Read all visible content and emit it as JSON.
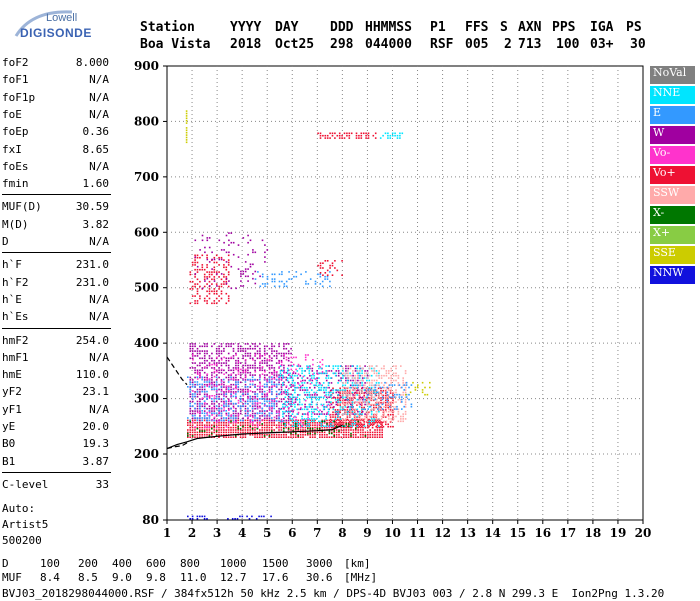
{
  "logo": {
    "brand": "Lowell",
    "name": "DIGISONDE"
  },
  "header": {
    "labels": [
      "Station",
      "YYYY",
      "DAY",
      "DDD",
      "HHMMSS",
      "P1",
      "FFS",
      "S",
      "AXN",
      "PPS",
      "IGA",
      "PS"
    ],
    "values": [
      "Boa Vista",
      "2018",
      "Oct25",
      "298",
      "044000",
      "RSF",
      "005",
      "2",
      "713",
      "100",
      "03+",
      "30"
    ]
  },
  "params": {
    "group1": [
      {
        "name": "foF2",
        "value": "8.000"
      },
      {
        "name": "foF1",
        "value": "N/A"
      },
      {
        "name": "foF1p",
        "value": "N/A"
      },
      {
        "name": "foE",
        "value": "N/A"
      },
      {
        "name": "foEp",
        "value": "0.36"
      },
      {
        "name": "fxI",
        "value": "8.65"
      },
      {
        "name": "foEs",
        "value": "N/A"
      },
      {
        "name": "fmin",
        "value": "1.60"
      }
    ],
    "group2": [
      {
        "name": "MUF(D)",
        "value": "30.59"
      },
      {
        "name": "M(D)",
        "value": "3.82"
      },
      {
        "name": "D",
        "value": "N/A"
      }
    ],
    "group3": [
      {
        "name": "h`F",
        "value": "231.0"
      },
      {
        "name": "h`F2",
        "value": "231.0"
      },
      {
        "name": "h`E",
        "value": "N/A"
      },
      {
        "name": "h`Es",
        "value": "N/A"
      }
    ],
    "group4": [
      {
        "name": "hmF2",
        "value": "254.0"
      },
      {
        "name": "hmF1",
        "value": "N/A"
      },
      {
        "name": "hmE",
        "value": "110.0"
      },
      {
        "name": "yF2",
        "value": "23.1"
      },
      {
        "name": "yF1",
        "value": "N/A"
      },
      {
        "name": "yE",
        "value": "20.0"
      },
      {
        "name": "B0",
        "value": "19.3"
      },
      {
        "name": "B1",
        "value": "3.87"
      }
    ],
    "group5": [
      {
        "name": "C-level",
        "value": "33"
      }
    ],
    "auto": [
      "Auto:",
      "Artist5",
      "500200"
    ]
  },
  "legend": [
    {
      "label": "NoVal",
      "color": "#808080"
    },
    {
      "label": "NNE",
      "color": "#00e5ff"
    },
    {
      "label": "E",
      "color": "#3399ff"
    },
    {
      "label": "W",
      "color": "#a000a0"
    },
    {
      "label": "Vo-",
      "color": "#ff33cc"
    },
    {
      "label": "Vo+",
      "color": "#ee1133"
    },
    {
      "label": "SSW",
      "color": "#ffaaaa"
    },
    {
      "label": "X-",
      "color": "#007700"
    },
    {
      "label": "X+",
      "color": "#88cc44"
    },
    {
      "label": "SSE",
      "color": "#cccc00"
    },
    {
      "label": "NNW",
      "color": "#1111dd"
    }
  ],
  "chart_data": {
    "type": "scatter",
    "xlim": [
      1,
      20
    ],
    "ylim": [
      80,
      900
    ],
    "xticks": [
      1,
      2,
      3,
      4,
      5,
      6,
      7,
      8,
      9,
      10,
      11,
      12,
      13,
      14,
      15,
      16,
      17,
      18,
      19,
      20
    ],
    "yticks": [
      80,
      200,
      300,
      400,
      500,
      600,
      700,
      800,
      900
    ],
    "grid": "dotted",
    "legend_position": "right",
    "clusters": [
      {
        "series": "Vo+",
        "x": [
          1.8,
          9.6
        ],
        "y": [
          228,
          262
        ],
        "density": 0.9
      },
      {
        "series": "Vo+",
        "x": [
          7.5,
          10.0
        ],
        "y": [
          250,
          320
        ],
        "density": 0.6
      },
      {
        "series": "W",
        "x": [
          1.9,
          6.0
        ],
        "y": [
          260,
          400
        ],
        "density": 0.55
      },
      {
        "series": "W",
        "x": [
          6.0,
          9.0
        ],
        "y": [
          270,
          360
        ],
        "density": 0.35
      },
      {
        "series": "E",
        "x": [
          1.8,
          5.5
        ],
        "y": [
          260,
          340
        ],
        "density": 0.35
      },
      {
        "series": "NNE",
        "x": [
          5.5,
          9.5
        ],
        "y": [
          250,
          360
        ],
        "density": 0.4
      },
      {
        "series": "SSW",
        "x": [
          8.0,
          10.5
        ],
        "y": [
          260,
          360
        ],
        "density": 0.45
      },
      {
        "series": "Vo-",
        "x": [
          2.0,
          7.5
        ],
        "y": [
          250,
          380
        ],
        "density": 0.15
      },
      {
        "series": "X-",
        "x": [
          1.8,
          9.0
        ],
        "y": [
          230,
          260
        ],
        "density": 0.15
      },
      {
        "series": "E",
        "x": [
          9.0,
          10.8
        ],
        "y": [
          280,
          330
        ],
        "density": 0.3
      },
      {
        "series": "Vo+",
        "x": [
          1.9,
          3.5
        ],
        "y": [
          470,
          560
        ],
        "density": 0.35
      },
      {
        "series": "W",
        "x": [
          2.0,
          5.0
        ],
        "y": [
          500,
          600
        ],
        "density": 0.12
      },
      {
        "series": "E",
        "x": [
          4.5,
          7.5
        ],
        "y": [
          500,
          530
        ],
        "density": 0.25
      },
      {
        "series": "Vo+",
        "x": [
          7.0,
          8.0
        ],
        "y": [
          520,
          550
        ],
        "density": 0.25
      },
      {
        "series": "Vo+",
        "x": [
          7.0,
          9.3
        ],
        "y": [
          770,
          780
        ],
        "density": 0.6
      },
      {
        "series": "NNE",
        "x": [
          9.5,
          10.4
        ],
        "y": [
          770,
          780
        ],
        "density": 0.7
      },
      {
        "series": "SSE",
        "x": [
          1.75,
          1.8
        ],
        "y": [
          760,
          820
        ],
        "density": 0.8
      },
      {
        "series": "SSE",
        "x": [
          10.5,
          11.5
        ],
        "y": [
          305,
          330
        ],
        "density": 0.3
      },
      {
        "series": "NNW",
        "x": [
          1.8,
          2.6
        ],
        "y": [
          82,
          88
        ],
        "density": 0.7
      },
      {
        "series": "NNW",
        "x": [
          3.4,
          5.2
        ],
        "y": [
          82,
          88
        ],
        "density": 0.25
      }
    ],
    "profile_curve": {
      "x": [
        1.0,
        1.4,
        1.8,
        2.2,
        2.6,
        3.0,
        3.5,
        4.0,
        5.0,
        6.0,
        7.0,
        7.6,
        8.0
      ],
      "y": [
        210,
        217,
        222,
        228,
        230,
        232,
        234,
        236,
        238,
        240,
        242,
        244,
        252
      ]
    },
    "profile_curve_upper": {
      "x": [
        1.0,
        1.3,
        1.6,
        1.8
      ],
      "y": [
        375,
        355,
        335,
        325
      ]
    },
    "profile_curve_lower": {
      "x": [
        1.0,
        1.3,
        1.6,
        1.8
      ],
      "y": [
        210,
        213,
        215,
        220
      ]
    }
  },
  "footer": {
    "distance_label": "D",
    "distance_values": [
      "100",
      "200",
      "400",
      "600",
      "800",
      "1000",
      "1500",
      "3000",
      "[km]"
    ],
    "muf_label": "MUF",
    "muf_values": [
      "8.4",
      "8.5",
      "9.0",
      "9.8",
      "11.0",
      "12.7",
      "17.6",
      "30.6",
      "[MHz]"
    ],
    "file_line": "BVJ03_2018298044000.RSF / 384fx512h 50 kHz 2.5 km / DPS-4D BVJ03 003 / 2.8 N 299.3 E  Ion2Png 1.3.20"
  }
}
